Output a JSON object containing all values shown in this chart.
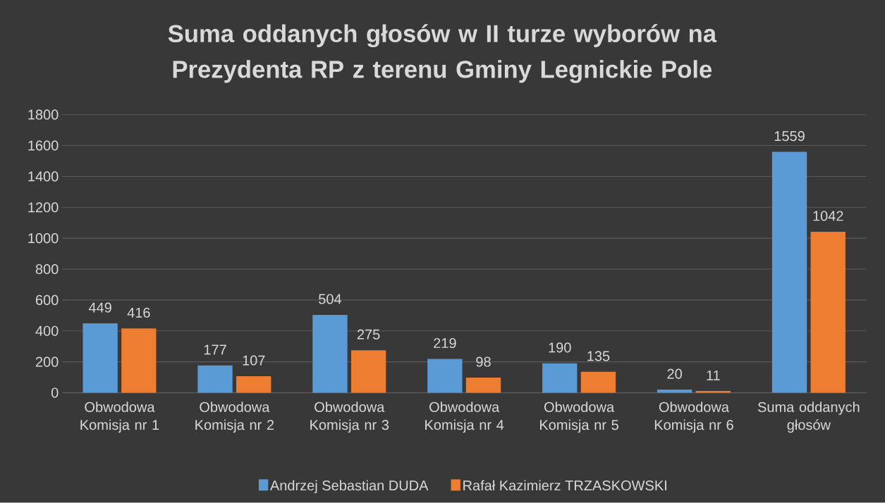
{
  "chart_data": {
    "type": "bar",
    "title": "Suma oddanych głosów w II turze wyborów na Prezydenta RP z terenu Gminy Legnickie Pole",
    "categories": [
      "Obwodowa Komisja nr 1",
      "Obwodowa Komisja nr 2",
      "Obwodowa Komisja nr 3",
      "Obwodowa Komisja nr 4",
      "Obwodowa Komisja nr 5",
      "Obwodowa Komisja nr 6",
      "Suma oddanych głosów"
    ],
    "series": [
      {
        "name": "Andrzej Sebastian DUDA",
        "color": "#5b9bd5",
        "values": [
          449,
          177,
          504,
          219,
          190,
          20,
          1559
        ]
      },
      {
        "name": "Rafał Kazimierz TRZASKOWSKI",
        "color": "#ed7d31",
        "values": [
          416,
          107,
          275,
          98,
          135,
          11,
          1042
        ]
      }
    ],
    "ylim": [
      0,
      1800
    ],
    "yticks": [
      0,
      200,
      400,
      600,
      800,
      1000,
      1200,
      1400,
      1600,
      1800
    ],
    "grid": "y",
    "legend": "bottom",
    "data_labels": true
  }
}
